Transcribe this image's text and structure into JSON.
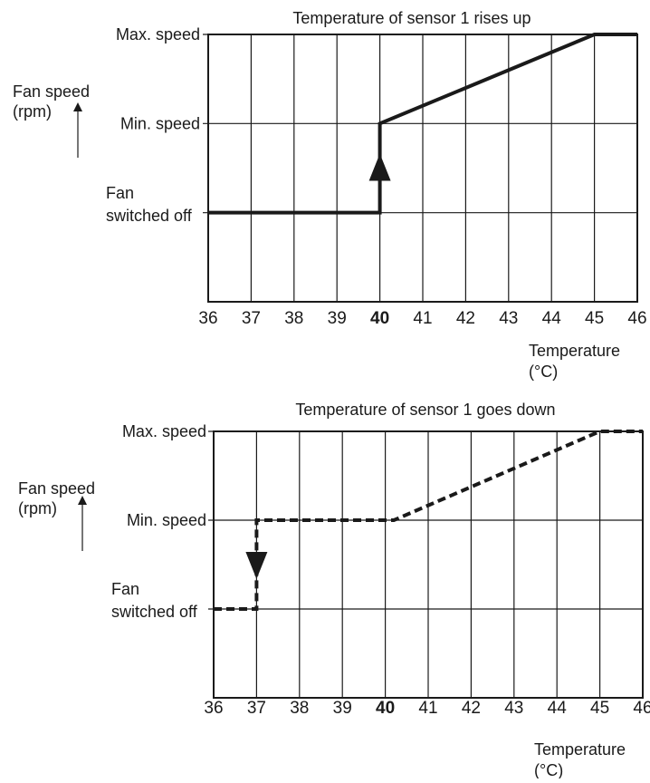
{
  "chart_data": [
    {
      "type": "line",
      "title": "Temperature of sensor 1 rises up",
      "ylabel": [
        "Fan speed",
        "(rpm)"
      ],
      "xlabel": [
        "Temperature",
        "(°C)"
      ],
      "x_ticks": [
        "36",
        "37",
        "38",
        "39",
        "40",
        "41",
        "42",
        "43",
        "44",
        "45",
        "46"
      ],
      "bold_tick": "40",
      "y_levels": [
        {
          "name": "Max. speed",
          "value": 3
        },
        {
          "name": "Min. speed",
          "value": 2
        },
        {
          "name": "Fan switched off",
          "lines": [
            "Fan",
            "switched off"
          ],
          "value": 1
        }
      ],
      "xlim": [
        36,
        46
      ],
      "ylim": [
        0,
        3
      ],
      "line_style": "solid",
      "arrow": {
        "direction": "up",
        "x": 40
      },
      "series": [
        {
          "x": [
            36,
            40,
            40,
            45,
            46
          ],
          "y": [
            1,
            1,
            2,
            3,
            3
          ]
        }
      ]
    },
    {
      "type": "line",
      "title": "Temperature of sensor 1 goes down",
      "ylabel": [
        "Fan speed",
        "(rpm)"
      ],
      "xlabel": [
        "Temperature",
        "(°C)"
      ],
      "x_ticks": [
        "36",
        "37",
        "38",
        "39",
        "40",
        "41",
        "42",
        "43",
        "44",
        "45",
        "46"
      ],
      "bold_tick": "40",
      "y_levels": [
        {
          "name": "Max. speed",
          "value": 3
        },
        {
          "name": "Min. speed",
          "value": 2
        },
        {
          "name": "Fan switched off",
          "lines": [
            "Fan",
            "switched off"
          ],
          "value": 1
        }
      ],
      "xlim": [
        36,
        46
      ],
      "ylim": [
        0,
        3
      ],
      "line_style": "dashed",
      "arrow": {
        "direction": "down",
        "x": 37
      },
      "series": [
        {
          "x": [
            36,
            37,
            37,
            40.2,
            45,
            46
          ],
          "y": [
            1,
            1,
            2,
            2,
            3,
            3
          ]
        }
      ]
    }
  ]
}
